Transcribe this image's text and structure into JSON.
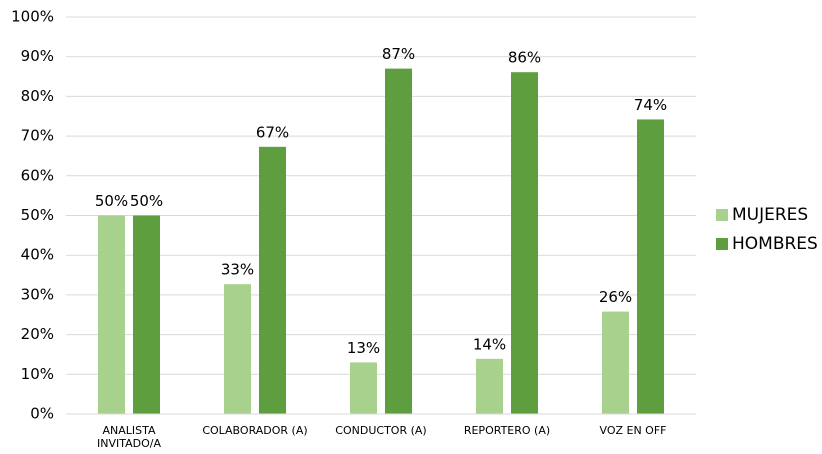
{
  "chart_data": {
    "type": "bar",
    "categories": [
      "ANALISTA INVITADO/A",
      "COLABORADOR (A)",
      "CONDUCTOR (A)",
      "REPORTERO (A)",
      "VOZ EN OFF"
    ],
    "series": [
      {
        "name": "MUJERES",
        "color": "#a9d18e",
        "values": [
          50,
          32.7,
          13,
          13.9,
          25.8
        ],
        "value_labels": [
          "50%",
          "33%",
          "13%",
          "14%",
          "26%"
        ]
      },
      {
        "name": "HOMBRES",
        "color": "#5f9e3f",
        "values": [
          50,
          67.3,
          87,
          86.1,
          74.2
        ],
        "value_labels": [
          "50%",
          "67%",
          "87%",
          "86%",
          "74%"
        ]
      }
    ],
    "ylim": [
      0,
      100
    ],
    "yticks": [
      {
        "value": 0,
        "label": "0%"
      },
      {
        "value": 10,
        "label": "10%"
      },
      {
        "value": 20,
        "label": "20%"
      },
      {
        "value": 30,
        "label": "30%"
      },
      {
        "value": 40,
        "label": "40%"
      },
      {
        "value": 50,
        "label": "50%"
      },
      {
        "value": 60,
        "label": "60%"
      },
      {
        "value": 70,
        "label": "70%"
      },
      {
        "value": 80,
        "label": "80%"
      },
      {
        "value": 90,
        "label": "90%"
      },
      {
        "value": 100,
        "label": "100%"
      }
    ],
    "grid": true,
    "legend": "right"
  }
}
